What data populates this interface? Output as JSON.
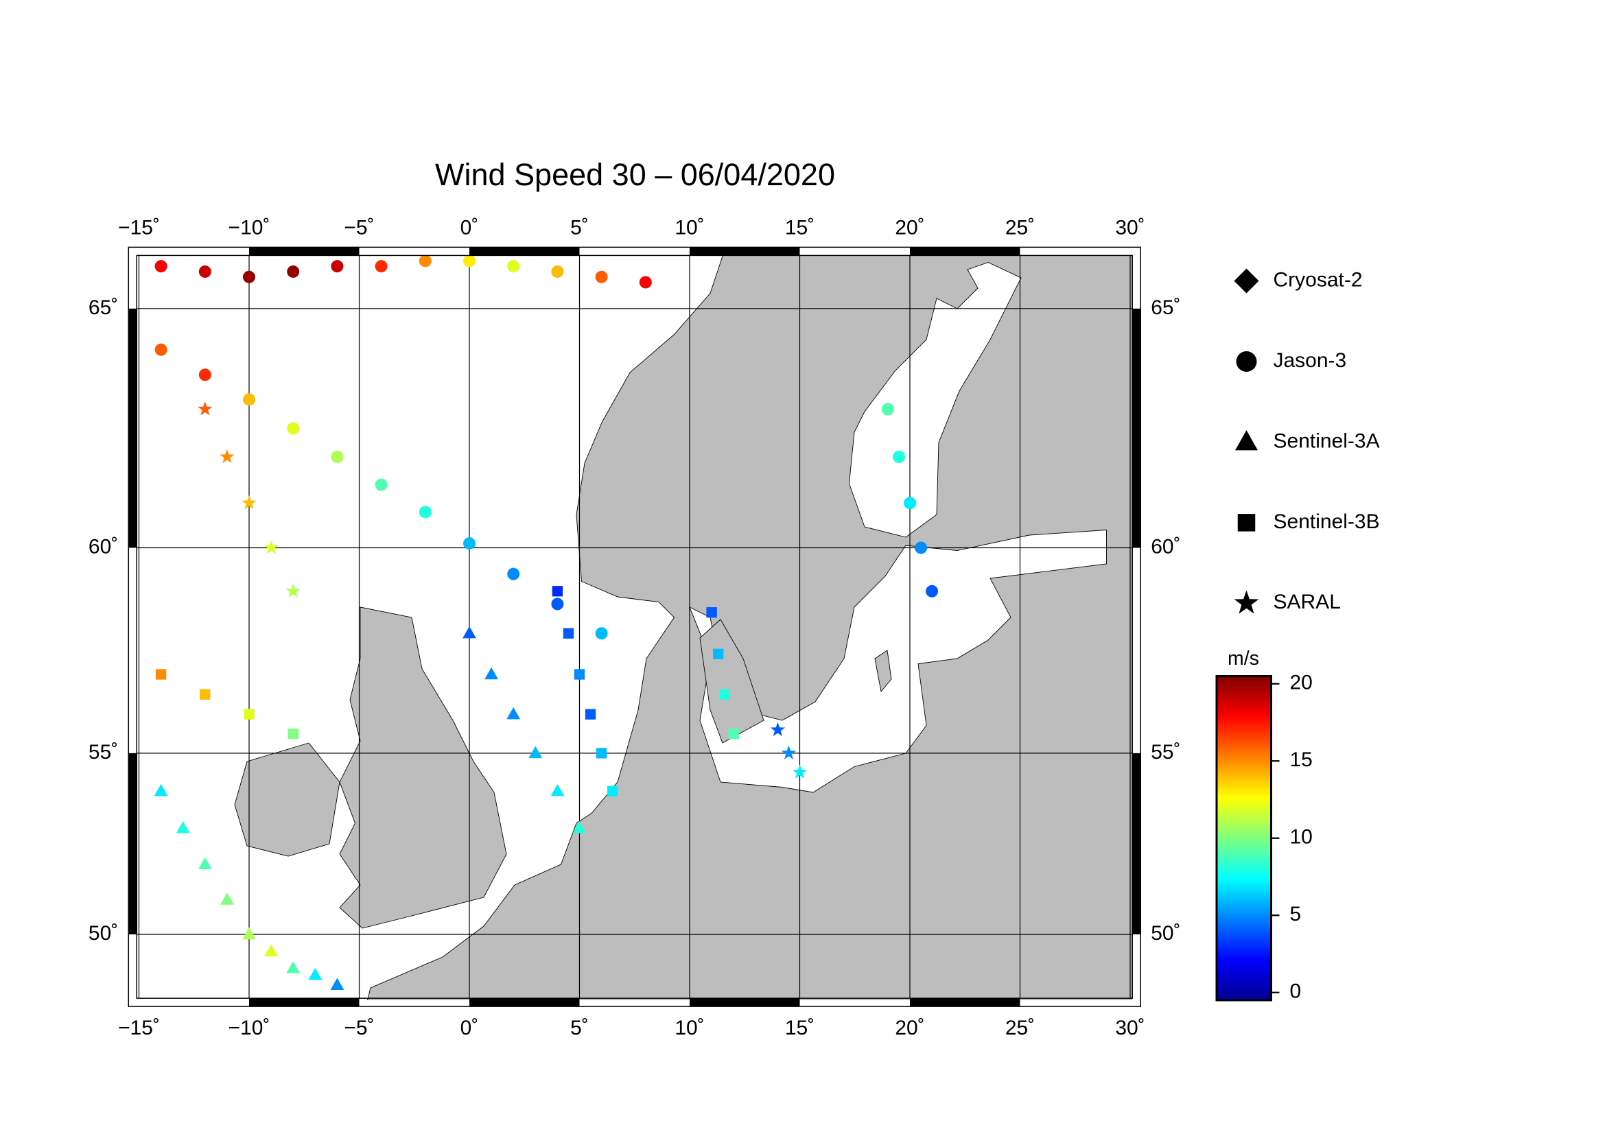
{
  "chart_data": {
    "type": "map",
    "title": "Wind Speed 30 – 06/04/2020",
    "xlim": [
      -15.1,
      30.1
    ],
    "ylim": [
      48.1,
      66.0
    ],
    "xticks": [
      {
        "value": -15,
        "label": "−15˚"
      },
      {
        "value": -10,
        "label": "−10˚"
      },
      {
        "value": -5,
        "label": "−5˚"
      },
      {
        "value": 0,
        "label": "0˚"
      },
      {
        "value": 5,
        "label": "5˚"
      },
      {
        "value": 10,
        "label": "10˚"
      },
      {
        "value": 15,
        "label": "15˚"
      },
      {
        "value": 20,
        "label": "20˚"
      },
      {
        "value": 25,
        "label": "25˚"
      },
      {
        "value": 30,
        "label": "30˚"
      }
    ],
    "yticks": [
      {
        "value": 50,
        "label": "50˚"
      },
      {
        "value": 55,
        "label": "55˚"
      },
      {
        "value": 60,
        "label": "60˚"
      },
      {
        "value": 65,
        "label": "65˚"
      }
    ],
    "grid": true,
    "projection": "mercator",
    "colorbar": {
      "label": "m/s",
      "colormap": "jet",
      "zlim": [
        -0.5,
        20.5
      ],
      "ticks": [
        0,
        5,
        10,
        15,
        20
      ]
    },
    "series": [
      {
        "name": "Cryosat-2",
        "marker": "diamond",
        "lon": [],
        "lat": [],
        "values": []
      },
      {
        "name": "Jason-3",
        "marker": "circle",
        "lon": [
          -14,
          -12,
          -10,
          -8,
          -6,
          -4,
          -2,
          0,
          2,
          4,
          6,
          8,
          -14,
          -12,
          -10,
          -8,
          -6,
          -4,
          -2,
          0,
          2,
          4,
          6,
          19,
          19.5,
          20,
          20.5,
          21
        ],
        "lat": [
          65.8,
          65.7,
          65.6,
          65.7,
          65.8,
          65.8,
          65.9,
          65.9,
          65.8,
          65.7,
          65.6,
          65.5,
          64.2,
          63.7,
          63.2,
          62.6,
          62.0,
          61.4,
          60.8,
          60.1,
          59.4,
          58.7,
          58.0,
          63,
          62,
          61,
          60,
          59
        ],
        "values": [
          18,
          19,
          20,
          20,
          19,
          17,
          15,
          13,
          12,
          14,
          16,
          18,
          16,
          17,
          14,
          12,
          11,
          9,
          8,
          6,
          5,
          4,
          6,
          9,
          8,
          7,
          5,
          4
        ]
      },
      {
        "name": "Sentinel-3A",
        "marker": "triangle",
        "lon": [
          -14,
          -13,
          -12,
          -11,
          -10,
          -9,
          -8,
          -7,
          -6,
          0,
          1,
          2,
          3,
          4,
          5
        ],
        "lat": [
          54,
          53,
          52,
          51,
          50,
          49.5,
          49,
          48.8,
          48.5,
          58,
          57,
          56,
          55,
          54,
          53
        ],
        "values": [
          7,
          8,
          9,
          10,
          11,
          12,
          9,
          7,
          5,
          4,
          5,
          5,
          6,
          7,
          8
        ]
      },
      {
        "name": "Sentinel-3B",
        "marker": "square",
        "lon": [
          4,
          4.5,
          5,
          5.5,
          6,
          6.5,
          11,
          11.3,
          11.6,
          12,
          -14,
          -12,
          -10,
          -8
        ],
        "lat": [
          59,
          58,
          57,
          56,
          55,
          54,
          58.5,
          57.5,
          56.5,
          55.5,
          57,
          56.5,
          56,
          55.5
        ],
        "values": [
          3,
          4,
          5,
          4,
          6,
          7,
          4,
          6,
          8,
          9,
          15,
          14,
          12,
          10
        ]
      },
      {
        "name": "SARAL",
        "marker": "star",
        "lon": [
          -12,
          -11,
          -10,
          -9,
          -8,
          14,
          14.5,
          15
        ],
        "lat": [
          63,
          62,
          61,
          60,
          59,
          55.6,
          55,
          54.5
        ],
        "values": [
          16,
          15,
          14,
          12,
          11,
          4,
          5,
          7
        ]
      }
    ]
  }
}
